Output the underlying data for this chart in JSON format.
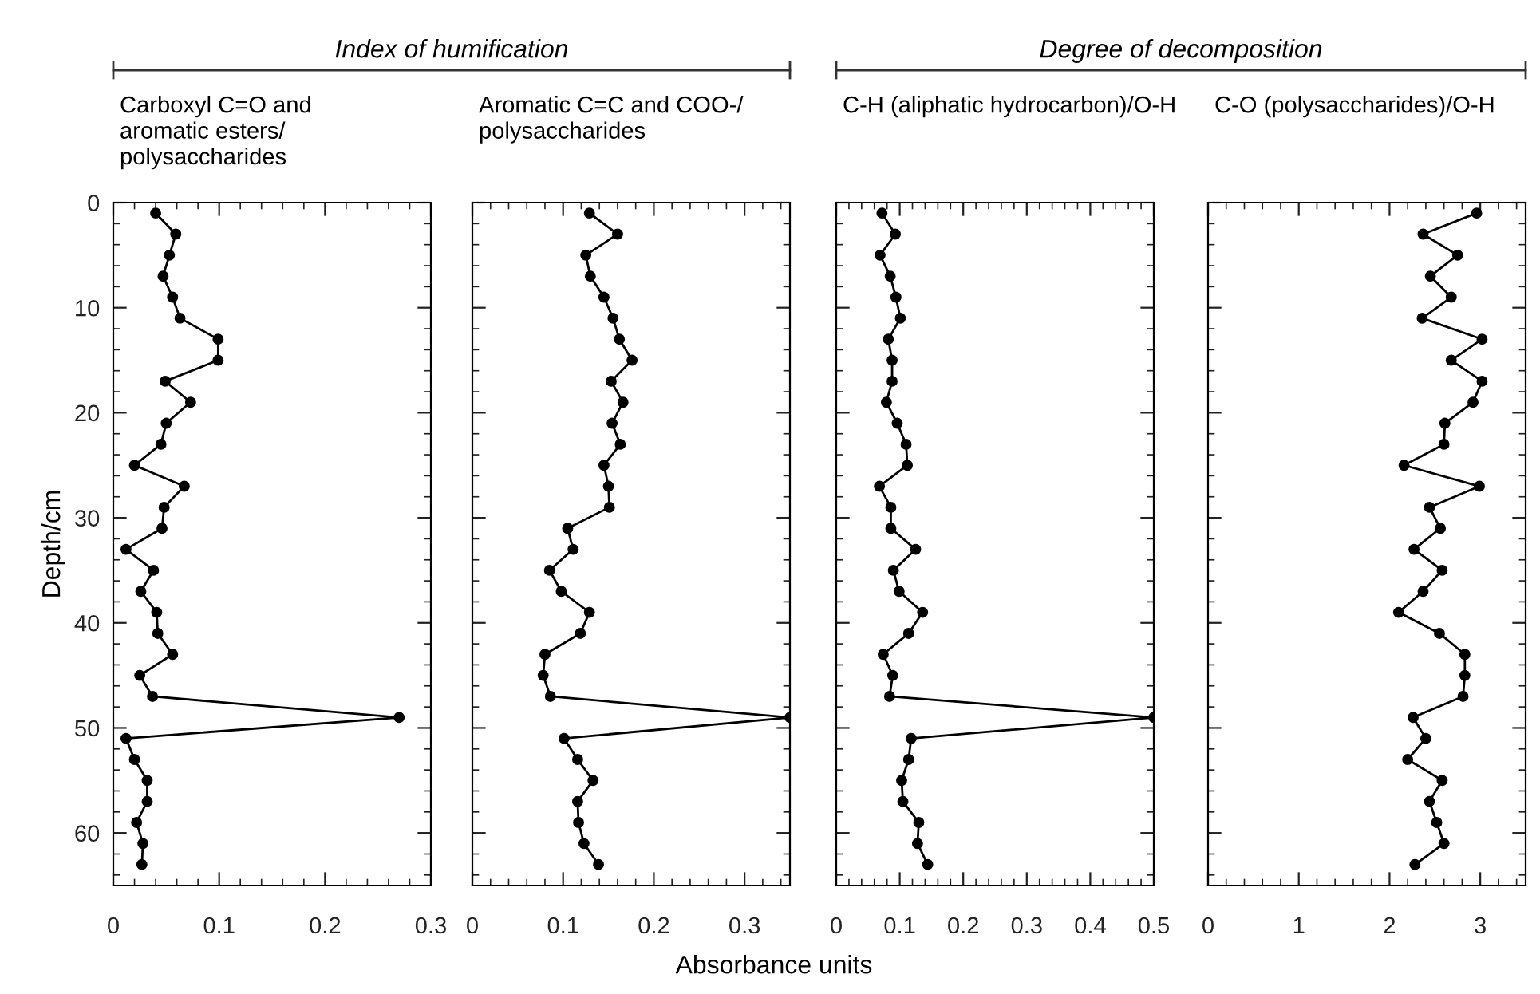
{
  "chart_data": [
    {
      "type": "line",
      "orientation": "horizontal",
      "title": "Carboxyl C=O and\naromatic esters/\npolysaccharides",
      "ylabel": "Depth/cm",
      "annotations": [
        "Index of humification"
      ],
      "marker": "circle",
      "line_style": "solid",
      "x": [
        1,
        3,
        5,
        7,
        9,
        11,
        13,
        15,
        17,
        19,
        21,
        23,
        25,
        27,
        29,
        31,
        33,
        35,
        37,
        39,
        41,
        43,
        45,
        47,
        49,
        51,
        53,
        55,
        57,
        59,
        61,
        63
      ],
      "series": [
        {
          "color": "#000000",
          "values": [
            0.04,
            0.059,
            0.053,
            0.047,
            0.056,
            0.063,
            0.099,
            0.099,
            0.049,
            0.073,
            0.05,
            0.045,
            0.02,
            0.067,
            0.048,
            0.046,
            0.012,
            0.038,
            0.026,
            0.041,
            0.042,
            0.056,
            0.025,
            0.037,
            0.27,
            0.012,
            0.02,
            0.032,
            0.032,
            0.022,
            0.028,
            0.027
          ]
        }
      ],
      "xlim": [
        0,
        0.3
      ],
      "xticks": [
        0,
        0.1,
        0.2,
        0.3
      ],
      "ylim": [
        65,
        0
      ],
      "yticks": [
        0,
        10,
        20,
        30,
        40,
        50,
        60
      ]
    },
    {
      "type": "line",
      "orientation": "horizontal",
      "title": "Aromatic C=C and COO-/\npolysaccharides",
      "xlabel": "Absorbance units",
      "marker": "circle",
      "line_style": "solid",
      "tick_labels": "x",
      "x": [
        1,
        3,
        5,
        7,
        9,
        11,
        13,
        15,
        17,
        19,
        21,
        23,
        25,
        27,
        29,
        31,
        33,
        35,
        37,
        39,
        41,
        43,
        45,
        47,
        49,
        51,
        53,
        55,
        57,
        59,
        61,
        63
      ],
      "series": [
        {
          "color": "#000000",
          "values": [
            0.129,
            0.16,
            0.125,
            0.13,
            0.145,
            0.155,
            0.162,
            0.176,
            0.153,
            0.166,
            0.154,
            0.163,
            0.145,
            0.15,
            0.151,
            0.105,
            0.111,
            0.085,
            0.098,
            0.129,
            0.119,
            0.08,
            0.078,
            0.086,
            0.35,
            0.101,
            0.116,
            0.133,
            0.116,
            0.117,
            0.123,
            0.139
          ]
        }
      ],
      "xlim": [
        0,
        0.35
      ],
      "xticks": [
        0,
        0.1,
        0.2,
        0.3
      ],
      "ylim": [
        65,
        0
      ],
      "yticks": [
        0,
        10,
        20,
        30,
        40,
        50,
        60
      ]
    },
    {
      "type": "line",
      "orientation": "horizontal",
      "title": "C-H (aliphatic hydrocarbon)/O-H",
      "annotations": [
        "Degree of decomposition"
      ],
      "marker": "circle",
      "line_style": "solid",
      "tick_labels": "x",
      "x": [
        1,
        3,
        5,
        7,
        9,
        11,
        13,
        15,
        17,
        19,
        21,
        23,
        25,
        27,
        29,
        31,
        33,
        35,
        37,
        39,
        41,
        43,
        45,
        47,
        49,
        51,
        53,
        55,
        57,
        59,
        61,
        63
      ],
      "series": [
        {
          "color": "#000000",
          "values": [
            0.072,
            0.093,
            0.069,
            0.085,
            0.094,
            0.101,
            0.082,
            0.088,
            0.088,
            0.079,
            0.096,
            0.11,
            0.112,
            0.068,
            0.086,
            0.086,
            0.125,
            0.09,
            0.099,
            0.136,
            0.114,
            0.074,
            0.089,
            0.084,
            0.5,
            0.118,
            0.114,
            0.103,
            0.105,
            0.13,
            0.128,
            0.144
          ]
        }
      ],
      "xlim": [
        0,
        0.5
      ],
      "xticks": [
        0,
        0.1,
        0.2,
        0.3,
        0.4,
        0.5
      ],
      "ylim": [
        65,
        0
      ],
      "yticks": [
        0,
        10,
        20,
        30,
        40,
        50,
        60
      ]
    },
    {
      "type": "line",
      "orientation": "horizontal",
      "title": "C-O (polysaccharides)/O-H",
      "marker": "circle",
      "line_style": "solid",
      "tick_labels": "x",
      "x": [
        1,
        3,
        5,
        7,
        9,
        11,
        13,
        15,
        17,
        19,
        21,
        23,
        25,
        27,
        29,
        31,
        33,
        35,
        37,
        39,
        41,
        43,
        45,
        47,
        49,
        51,
        53,
        55,
        57,
        59,
        61,
        63
      ],
      "series": [
        {
          "color": "#000000",
          "values": [
            2.96,
            2.37,
            2.75,
            2.45,
            2.68,
            2.36,
            3.02,
            2.68,
            3.02,
            2.92,
            2.61,
            2.6,
            2.16,
            2.99,
            2.44,
            2.56,
            2.27,
            2.58,
            2.37,
            2.1,
            2.55,
            2.83,
            2.83,
            2.81,
            2.26,
            2.4,
            2.2,
            2.58,
            2.44,
            2.52,
            2.6,
            2.28
          ]
        }
      ],
      "xlim": [
        0,
        3.5
      ],
      "xticks": [
        0,
        1,
        2,
        3
      ],
      "ylim": [
        65,
        0
      ],
      "yticks": [
        0,
        10,
        20,
        30,
        40,
        50,
        60
      ]
    }
  ]
}
